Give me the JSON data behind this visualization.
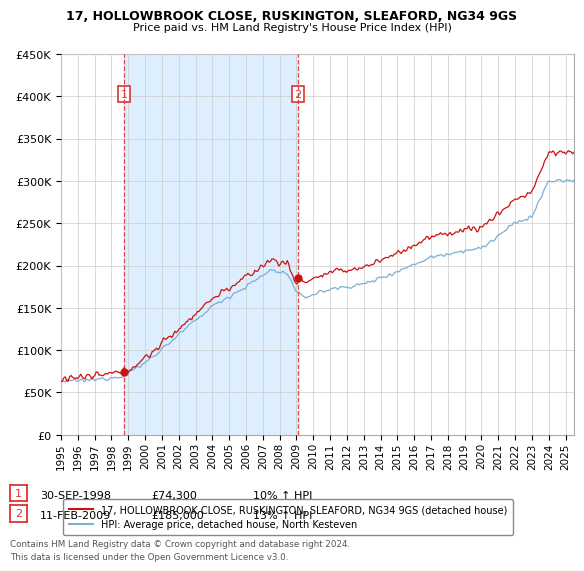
{
  "title": "17, HOLLOWBROOK CLOSE, RUSKINGTON, SLEAFORD, NG34 9GS",
  "subtitle": "Price paid vs. HM Land Registry's House Price Index (HPI)",
  "ylim": [
    0,
    450000
  ],
  "yticks": [
    0,
    50000,
    100000,
    150000,
    200000,
    250000,
    300000,
    350000,
    400000,
    450000
  ],
  "hpi_color": "#7bafd4",
  "price_color": "#cc1111",
  "vline_color": "#dd3333",
  "point1_date": "30-SEP-1998",
  "point1_price": 74300,
  "point1_hpi_pct": "10% ↑ HPI",
  "point2_date": "11-FEB-2009",
  "point2_price": 185000,
  "point2_hpi_pct": "13% ↑ HPI",
  "footer": "Contains HM Land Registry data © Crown copyright and database right 2024.\nThis data is licensed under the Open Government Licence v3.0.",
  "legend_line1": "17, HOLLOWBROOK CLOSE, RUSKINGTON, SLEAFORD, NG34 9GS (detached house)",
  "legend_line2": "HPI: Average price, detached house, North Kesteven",
  "xstart": 1995.0,
  "xend": 2025.5,
  "bg_fill_color": "#ddeeff",
  "sale1_year": 1998.75,
  "sale1_price": 74300,
  "sale2_year": 2009.083,
  "sale2_price": 185000
}
